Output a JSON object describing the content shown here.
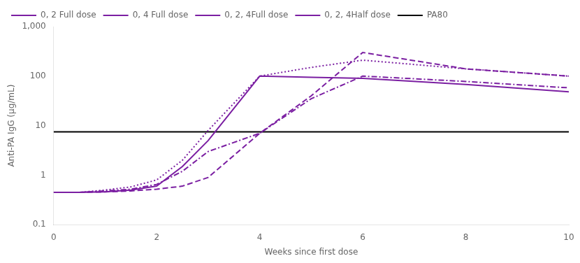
{
  "chart_data": {
    "type": "line",
    "xlabel": "Weeks since first dose",
    "ylabel": "Anti-PA IgG (μg/mL)",
    "x": [
      0,
      0.5,
      1,
      1.5,
      2,
      2.5,
      3,
      4,
      5,
      6,
      8,
      10
    ],
    "series": [
      {
        "name": "0, 2 Full dose",
        "color": "#7B1FA2",
        "line_style": "solid",
        "values": [
          0.45,
          0.45,
          0.46,
          0.5,
          0.6,
          1.5,
          5,
          100,
          95,
          90,
          68,
          48
        ]
      },
      {
        "name": "0, 4 Full dose",
        "color": "#7B1FA2",
        "line_style": "dashed",
        "values": [
          0.45,
          0.45,
          0.46,
          0.48,
          0.52,
          0.6,
          0.9,
          7.0,
          40,
          300,
          140,
          100
        ]
      },
      {
        "name": "0, 2, 4Full dose",
        "color": "#7B1FA2",
        "line_style": "dotted",
        "values": [
          0.45,
          0.45,
          0.5,
          0.58,
          0.8,
          2.0,
          8,
          100,
          150,
          210,
          140,
          100
        ]
      },
      {
        "name": "0, 2, 4Half dose",
        "color": "#7B1FA2",
        "line_style": "dashdot",
        "values": [
          0.45,
          0.45,
          0.48,
          0.52,
          0.65,
          1.2,
          3,
          7.0,
          35,
          100,
          78,
          58
        ]
      },
      {
        "name": "PA80",
        "color": "#000000",
        "line_style": "solid",
        "values": [
          7.5,
          7.5,
          7.5,
          7.5,
          7.5,
          7.5,
          7.5,
          7.5,
          7.5,
          7.5,
          7.5,
          7.5
        ]
      }
    ],
    "xlim": [
      0,
      10
    ],
    "xticks": [
      0,
      2,
      4,
      6,
      8,
      10
    ],
    "ylim": [
      0.1,
      1000
    ],
    "yticks": [
      0.1,
      1,
      10,
      100,
      {
        "value": 1000,
        "label": "1,000"
      }
    ],
    "log": "y",
    "grid": false,
    "legend": "upper left"
  }
}
